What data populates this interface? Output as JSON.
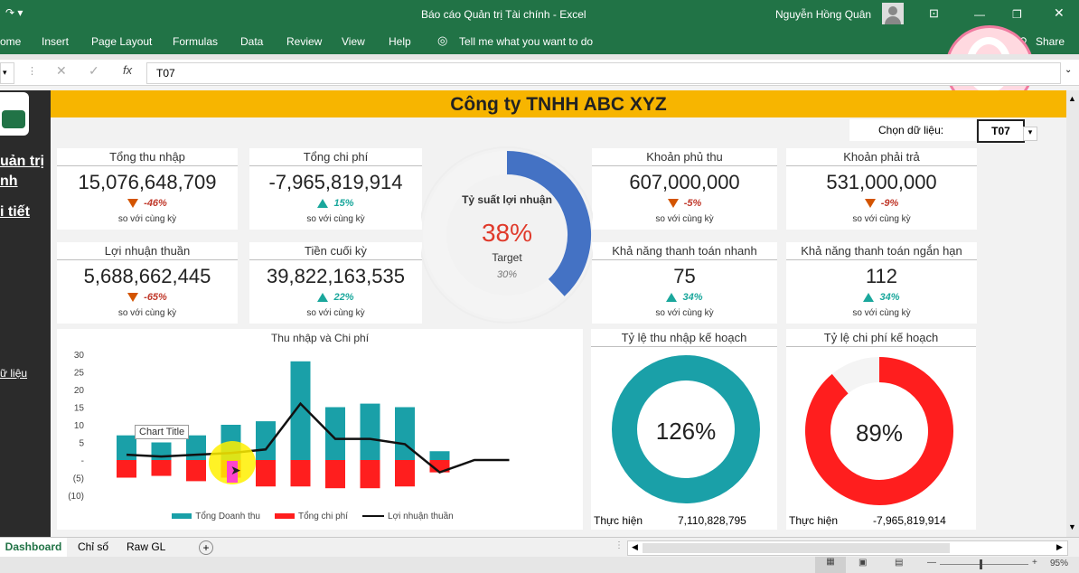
{
  "app": {
    "title": "Báo cáo Quản trị Tài chính  -  Excel",
    "user": "Nguyễn Hồng Quân"
  },
  "ribbon": {
    "tabs": [
      "ome",
      "Insert",
      "Page Layout",
      "Formulas",
      "Data",
      "Review",
      "View",
      "Help"
    ],
    "tell_me": "Tell me what you want to do",
    "share": "Share"
  },
  "formula_bar": {
    "value": "T07",
    "fx": "fx"
  },
  "left_panel": {
    "links": [
      "uản trị",
      "nh",
      "i tiết",
      "ữ liệu"
    ]
  },
  "dashboard": {
    "company": "Công ty TNHH ABC XYZ",
    "select_label": "Chọn dữ liệu:",
    "select_value": "T07",
    "compare_text": "so với cùng kỳ",
    "cards": [
      {
        "title": "Tổng thu nhập",
        "value": "15,076,648,709",
        "change": "-46%",
        "dir": "down"
      },
      {
        "title": "Tổng chi phí",
        "value": "-7,965,819,914",
        "change": "15%",
        "dir": "up"
      },
      {
        "title": "Khoản phủ thu",
        "value": "607,000,000",
        "change": "-5%",
        "dir": "down"
      },
      {
        "title": "Khoản phải trả",
        "value": "531,000,000",
        "change": "-9%",
        "dir": "down"
      },
      {
        "title": "Lợi nhuận thuần",
        "value": "5,688,662,445",
        "change": "-65%",
        "dir": "down"
      },
      {
        "title": "Tiền cuối kỳ",
        "value": "39,822,163,535",
        "change": "22%",
        "dir": "up"
      },
      {
        "title": "Khả năng thanh toán nhanh",
        "value": "75",
        "change": "34%",
        "dir": "up"
      },
      {
        "title": "Khả năng thanh toán ngắn hạn",
        "value": "112",
        "change": "34%",
        "dir": "up"
      }
    ],
    "profit_gauge": {
      "title": "Tỷ suất lợi nhuận",
      "value_label": "38%",
      "value": 38,
      "target_label": "Target",
      "target_value": "30%"
    },
    "income_plan": {
      "title": "Tỷ lệ thu nhập kế hoạch",
      "value_label": "126%",
      "value": 126,
      "actual_label": "Thực hiện",
      "actual_value": "7,110,828,795",
      "color": "#1aa0a8"
    },
    "expense_plan": {
      "title": "Tỷ lệ chi phí kế hoạch",
      "value_label": "89%",
      "value": 89,
      "actual_label": "Thực hiện",
      "actual_value": "-7,965,819,914",
      "color": "#ff1e1e"
    }
  },
  "chart_data": {
    "type": "bar",
    "title": "Thu nhập và Chi phí",
    "tooltip": "Chart Title",
    "ylim": [
      -10,
      30
    ],
    "yticks": [
      "30",
      "25",
      "20",
      "15",
      "10",
      "5",
      "-",
      "(5)",
      "(10)"
    ],
    "series": [
      {
        "name": "Tổng Doanh thu",
        "type": "bar",
        "color": "#1aa0a8",
        "values": [
          7,
          5,
          7,
          10,
          11,
          28,
          15,
          16,
          15,
          2.5
        ]
      },
      {
        "name": "Tổng chi phí",
        "type": "bar",
        "color": "#ff1e1e",
        "values": [
          -5,
          -4.5,
          -6,
          -5,
          -7.5,
          -7.5,
          -8,
          -8,
          -7.5,
          -3.5
        ]
      },
      {
        "name": "Lợi nhuận thuần",
        "type": "line",
        "color": "#111111",
        "values": [
          1.5,
          1,
          1.5,
          2,
          3,
          16,
          6,
          6,
          4.5,
          -3.5,
          0,
          0
        ]
      }
    ]
  },
  "tabs": {
    "sheets": [
      "Dashboard",
      "Chỉ số",
      "Raw GL"
    ],
    "active": "Dashboard"
  },
  "status": {
    "zoom": "95%"
  }
}
